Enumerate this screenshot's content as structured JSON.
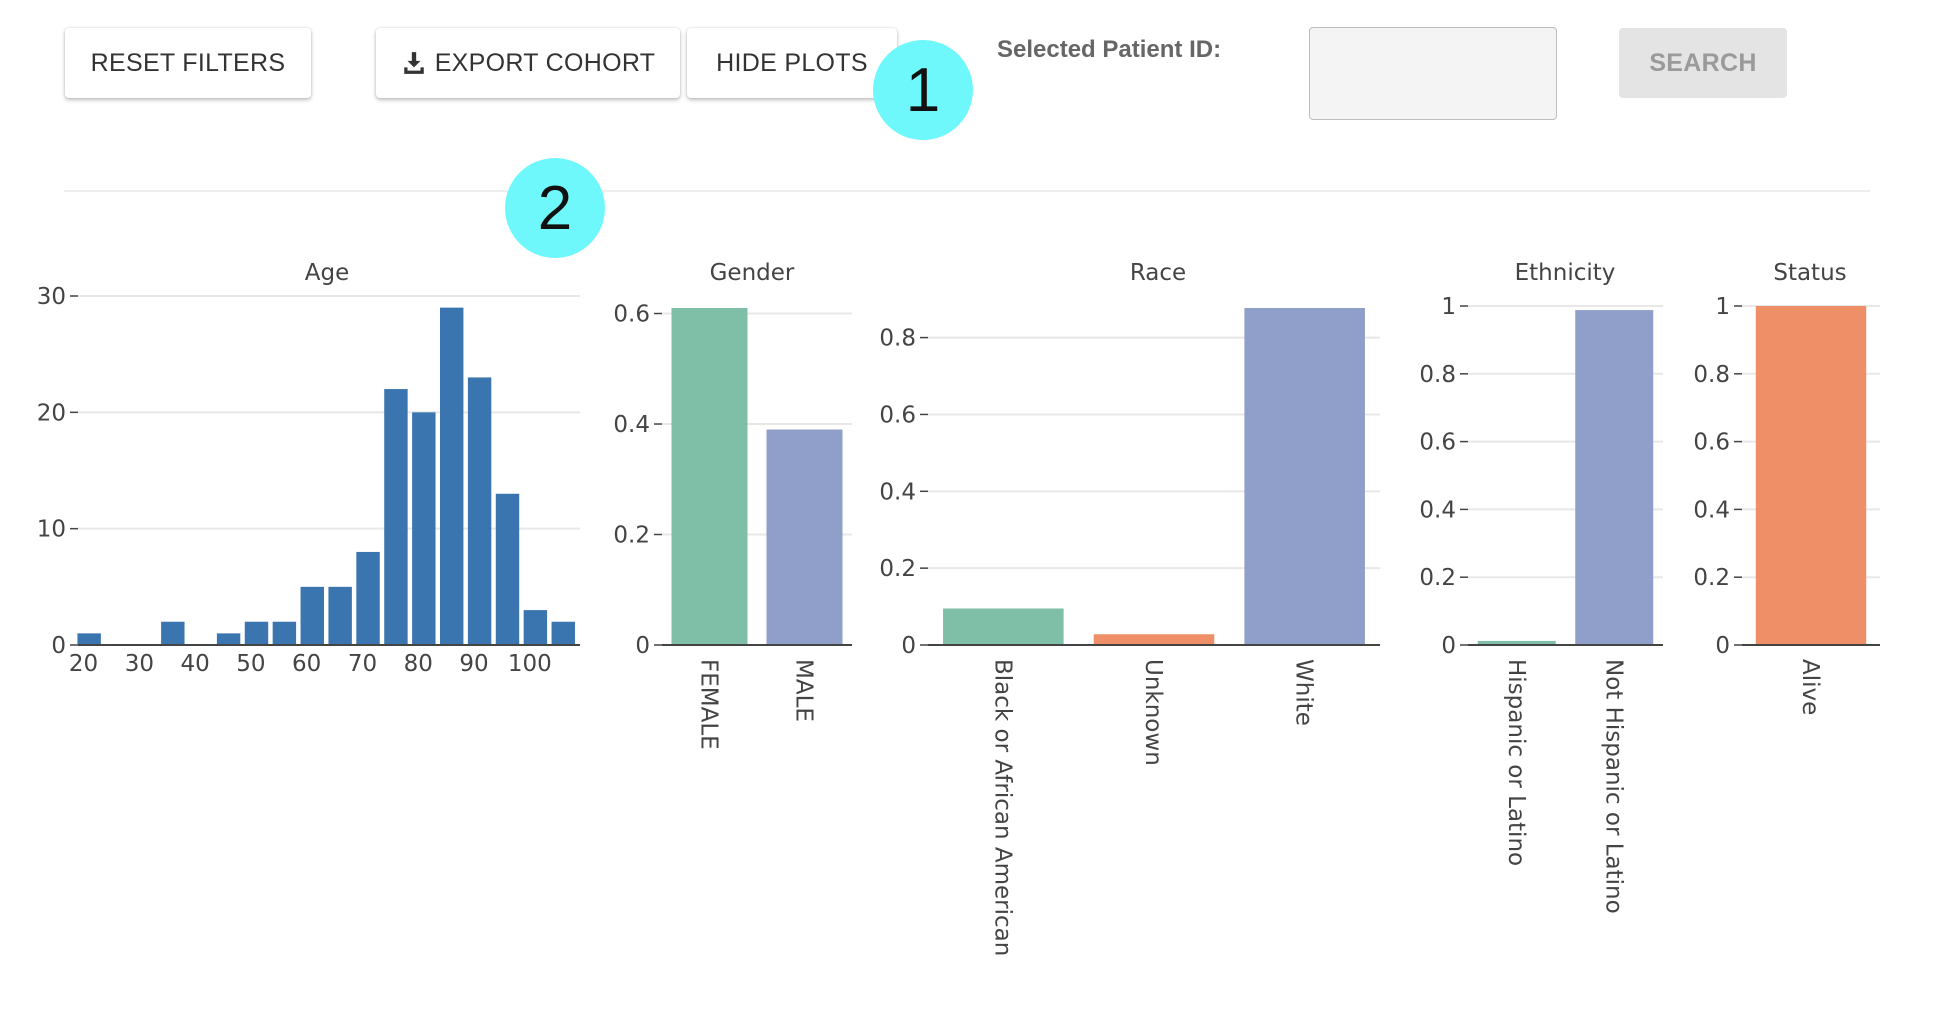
{
  "toolbar": {
    "reset_label": "RESET FILTERS",
    "export_label": "EXPORT COHORT",
    "export_icon": "download-icon",
    "hide_label": "HIDE PLOTS",
    "patient_label": "Selected Patient ID:",
    "patient_value": "",
    "search_label": "SEARCH"
  },
  "annotations": [
    "1",
    "2"
  ],
  "colors": {
    "age": "#3b75af",
    "green": "#7fbfa7",
    "orange": "#ee8f68",
    "blue": "#8f9fc9",
    "grid": "#e8e8e8",
    "axis": "#444444"
  },
  "chart_data": [
    {
      "type": "bar",
      "title": "Age",
      "x": [
        21,
        26,
        31,
        36,
        41,
        46,
        51,
        56,
        61,
        66,
        71,
        76,
        81,
        86,
        91,
        96,
        101,
        106
      ],
      "values": [
        1,
        0,
        0,
        2,
        0,
        1,
        2,
        2,
        5,
        5,
        8,
        22,
        20,
        29,
        23,
        13,
        3,
        2
      ],
      "xlim": [
        19,
        109
      ],
      "ylim": [
        0,
        30
      ],
      "xticks": [
        20,
        30,
        40,
        50,
        60,
        70,
        80,
        90,
        100
      ],
      "yticks": [
        0,
        10,
        20,
        30
      ],
      "grid": true
    },
    {
      "type": "bar",
      "title": "Gender",
      "categories": [
        "FEMALE",
        "MALE"
      ],
      "values": [
        0.61,
        0.39
      ],
      "colors": [
        "green",
        "blue"
      ],
      "ylim": [
        0,
        0.61
      ],
      "yticks": [
        0,
        0.2,
        0.4,
        0.6
      ],
      "grid": true
    },
    {
      "type": "bar",
      "title": "Race",
      "categories": [
        "Black or African American",
        "Unknown",
        "White"
      ],
      "values": [
        0.095,
        0.028,
        0.877
      ],
      "colors": [
        "green",
        "orange",
        "blue"
      ],
      "ylim": [
        0,
        0.877
      ],
      "yticks": [
        0,
        0.2,
        0.4,
        0.6,
        0.8
      ],
      "grid": true
    },
    {
      "type": "bar",
      "title": "Ethnicity",
      "categories": [
        "Hispanic or Latino",
        "Not Hispanic or Latino"
      ],
      "values": [
        0.012,
        0.988
      ],
      "colors": [
        "green",
        "blue"
      ],
      "ylim": [
        0,
        1
      ],
      "yticks": [
        0,
        0.2,
        0.4,
        0.6,
        0.8,
        1
      ],
      "grid": true
    },
    {
      "type": "bar",
      "title": "Status",
      "categories": [
        "Alive"
      ],
      "values": [
        1
      ],
      "colors": [
        "orange"
      ],
      "ylim": [
        0,
        1
      ],
      "yticks": [
        0,
        0.2,
        0.4,
        0.6,
        0.8,
        1
      ],
      "grid": true
    }
  ]
}
